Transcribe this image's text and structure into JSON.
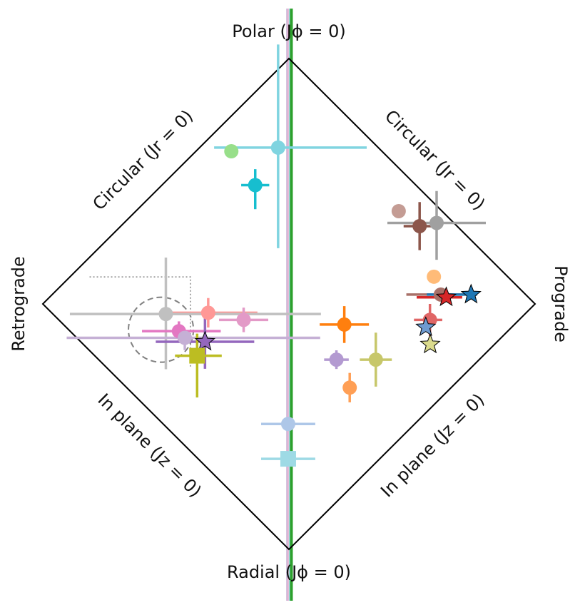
{
  "chart_data": {
    "type": "scatter",
    "coordinates": "normalized action diamond: x = J_phi / J_tot (-1 retrograde to +1 prograde), y = (J_z - J_r) / J_tot (+1 polar top to -1 radial bottom)",
    "edge_labels": {
      "top": "Polar (Jϕ = 0)",
      "bottom": "Radial (Jϕ = 0)",
      "left": "Retrograde",
      "right": "Prograde",
      "upper_left": "Circular (Jr = 0)",
      "upper_right": "Circular (Jr = 0)",
      "lower_left": "In plane (Jz = 0)",
      "lower_right": "In plane (Jz = 0)"
    },
    "vertical_lines": [
      {
        "x": -0.005,
        "color": "#c5b0d5"
      },
      {
        "x": 0.0,
        "color": "#f7b6d2"
      },
      {
        "x": 0.005,
        "color": "#9edae5"
      },
      {
        "x": 0.01,
        "color": "#2ca02c"
      }
    ],
    "points": [
      {
        "x": -0.234,
        "y": 0.622,
        "marker": "circle",
        "color": "#98df8a"
      },
      {
        "x": -0.044,
        "y": 0.637,
        "marker": "circle",
        "color": "#80d4e0",
        "xerr": [
          0.26,
          0.36
        ],
        "yerr": [
          0.41,
          0.42
        ]
      },
      {
        "x": -0.137,
        "y": 0.484,
        "marker": "circle",
        "color": "#17becf",
        "xerr": [
          0.057,
          0.057
        ],
        "yerr": [
          0.098,
          0.065
        ]
      },
      {
        "x": 0.446,
        "y": 0.378,
        "marker": "circle",
        "color": "#c49c94"
      },
      {
        "x": 0.531,
        "y": 0.317,
        "marker": "circle",
        "color": "#8c564b",
        "xerr": [
          0.065,
          0.065
        ],
        "yerr": [
          0.098,
          0.098
        ]
      },
      {
        "x": 0.6,
        "y": 0.33,
        "marker": "circle",
        "color": "#a0a0a0",
        "xerr": [
          0.2,
          0.2
        ],
        "yerr": [
          0.15,
          0.13
        ]
      },
      {
        "x": 0.589,
        "y": 0.111,
        "marker": "circle",
        "color": "#ffbb78"
      },
      {
        "x": 0.617,
        "y": 0.038,
        "marker": "circle",
        "color": "#a87068",
        "xerr": [
          0.14,
          0.1
        ],
        "yerr": [
          0.0,
          0.0
        ]
      },
      {
        "x": 0.639,
        "y": 0.027,
        "marker": "star",
        "color": "#d62728",
        "xerr": [
          0.12,
          0.065
        ]
      },
      {
        "x": 0.74,
        "y": 0.038,
        "marker": "star",
        "color": "#1f77b4",
        "xerr": [
          0.18,
          0.025
        ]
      },
      {
        "x": 0.573,
        "y": -0.065,
        "marker": "circle",
        "color": "#e06666",
        "xerr": [
          0.065,
          0.05
        ],
        "yerr": [
          0.065,
          0.065
        ]
      },
      {
        "x": 0.556,
        "y": -0.095,
        "marker": "star",
        "color": "#6f9bd1"
      },
      {
        "x": 0.574,
        "y": -0.165,
        "marker": "star",
        "color": "#dbdb8d"
      },
      {
        "x": 0.225,
        "y": -0.084,
        "marker": "circle",
        "color": "#ff7f0e",
        "xerr": [
          0.1,
          0.1
        ],
        "yerr": [
          0.075,
          0.075
        ]
      },
      {
        "x": 0.193,
        "y": -0.227,
        "marker": "circle",
        "color": "#b39ad1",
        "xerr": [
          0.05,
          0.05
        ],
        "yerr": [
          0.038,
          0.038
        ]
      },
      {
        "x": 0.353,
        "y": -0.227,
        "marker": "circle",
        "color": "#c7c76a",
        "xerr": [
          0.065,
          0.065
        ],
        "yerr": [
          0.11,
          0.11
        ]
      },
      {
        "x": 0.247,
        "y": -0.341,
        "marker": "circle",
        "color": "#ff9f55",
        "yerr": [
          0.06,
          0.06
        ]
      },
      {
        "x": -0.003,
        "y": -0.489,
        "marker": "circle",
        "color": "#aec7e8",
        "xerr": [
          0.11,
          0.11
        ]
      },
      {
        "x": -0.003,
        "y": -0.631,
        "marker": "square",
        "color": "#9edae5",
        "xerr": [
          0.11,
          0.11
        ]
      },
      {
        "x": -0.328,
        "y": -0.036,
        "marker": "circle",
        "color": "#ff9896",
        "xerr": [
          0.2,
          0.2
        ],
        "yerr": [
          0.06,
          0.06
        ]
      },
      {
        "x": -0.184,
        "y": -0.065,
        "marker": "circle",
        "color": "#e39ac7",
        "xerr": [
          0.1,
          0.1
        ],
        "yerr": [
          0.05,
          0.05
        ]
      },
      {
        "x": -0.5,
        "y": -0.041,
        "marker": "circle",
        "color": "#c0c0c0",
        "xerr": [
          0.39,
          0.63
        ],
        "yerr": [
          0.225,
          0.23
        ]
      },
      {
        "x": -0.447,
        "y": -0.111,
        "marker": "circle",
        "color": "#e377c2",
        "xerr": [
          0.15,
          0.17
        ],
        "yerr": [
          0.04,
          0.04
        ]
      },
      {
        "x": -0.423,
        "y": -0.138,
        "marker": "circle",
        "color": "#c5b0d5",
        "xerr": [
          0.48,
          0.55
        ],
        "yerr": [
          0.05,
          0.03
        ]
      },
      {
        "x": -0.341,
        "y": -0.154,
        "marker": "star",
        "color": "#9467bd",
        "xerr": [
          0.2,
          0.2
        ],
        "yerr": [
          0.11,
          0.11
        ]
      },
      {
        "x": -0.373,
        "y": -0.211,
        "marker": "square",
        "color": "#bcbd22",
        "xerr": [
          0.09,
          0.1
        ],
        "yerr": [
          0.17,
          0.09
        ]
      }
    ],
    "annotations": [
      {
        "type": "dashed-circle",
        "x": -0.52,
        "y": -0.105,
        "r": 0.132,
        "color": "#808080"
      },
      {
        "type": "dotted-box",
        "x0": -0.81,
        "y0": 0.11,
        "x1": -0.4,
        "y1": -0.26,
        "color": "#888888"
      }
    ]
  }
}
